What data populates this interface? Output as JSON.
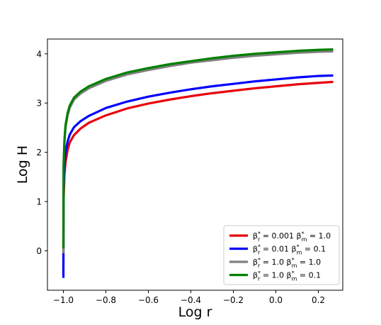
{
  "chart_data": {
    "type": "line",
    "title": "",
    "xlabel": "Log r",
    "ylabel": "Log H",
    "xlim": [
      -1.075,
      0.315
    ],
    "ylim": [
      -0.8,
      4.3
    ],
    "xticks": [
      -1.0,
      -0.8,
      -0.6,
      -0.4,
      -0.2,
      0.0,
      0.2
    ],
    "xtick_labels": [
      "−1.0",
      "−0.8",
      "−0.6",
      "−0.4",
      "−0.2",
      "0.0",
      "0.2"
    ],
    "yticks": [
      0,
      1,
      2,
      3,
      4
    ],
    "ytick_labels": [
      "0",
      "1",
      "2",
      "3",
      "4"
    ],
    "grid": false,
    "legend_position": "lower-right",
    "x": [
      -1.0,
      -0.999,
      -0.995,
      -0.99,
      -0.98,
      -0.97,
      -0.95,
      -0.92,
      -0.88,
      -0.8,
      -0.7,
      -0.6,
      -0.5,
      -0.4,
      -0.3,
      -0.2,
      -0.1,
      0.0,
      0.1,
      0.2,
      0.27
    ],
    "series": [
      {
        "name": "β*r = 0.001 β*m = 1.0",
        "legend_parts": {
          "a": "β",
          "a_sup": "*",
          "a_sub": "r",
          "a_val": " = 0.001 ",
          "b": "β",
          "b_sup": "*",
          "b_sub": "m",
          "b_val": " = 1.0"
        },
        "color": "#e8000b",
        "y": [
          0.0,
          1.0,
          1.55,
          1.8,
          2.05,
          2.2,
          2.35,
          2.48,
          2.6,
          2.75,
          2.89,
          2.99,
          3.07,
          3.14,
          3.2,
          3.25,
          3.3,
          3.34,
          3.38,
          3.41,
          3.43
        ]
      },
      {
        "name": "β*r = 0.01 β*m = 0.1",
        "legend_parts": {
          "a": "β",
          "a_sup": "*",
          "a_sub": "r",
          "a_val": " = 0.01 ",
          "b": "β",
          "b_sup": "*",
          "b_sub": "m",
          "b_val": " = 0.1"
        },
        "color": "#0000ff",
        "y": [
          -0.55,
          1.2,
          1.75,
          2.0,
          2.22,
          2.36,
          2.51,
          2.63,
          2.74,
          2.9,
          3.03,
          3.13,
          3.21,
          3.28,
          3.34,
          3.39,
          3.44,
          3.48,
          3.52,
          3.55,
          3.56
        ]
      },
      {
        "name": "β*r = 1.0 β*m = 1.0",
        "legend_parts": {
          "a": "β",
          "a_sup": "*",
          "a_sub": "r",
          "a_val": " = 1.0 ",
          "b": "β",
          "b_sup": "*",
          "b_sub": "m",
          "b_val": " = 1.0"
        },
        "color": "#808080",
        "y": [
          -0.05,
          1.7,
          2.2,
          2.5,
          2.75,
          2.9,
          3.07,
          3.19,
          3.3,
          3.45,
          3.58,
          3.67,
          3.75,
          3.82,
          3.87,
          3.92,
          3.96,
          3.99,
          4.02,
          4.04,
          4.05
        ]
      },
      {
        "name": "β*r = 1.0 β*m = 0.1",
        "legend_parts": {
          "a": "β",
          "a_sup": "*",
          "a_sub": "r",
          "a_val": " = 1.0 ",
          "b": "β",
          "b_sup": "*",
          "b_sub": "m",
          "b_val": " = 0.1"
        },
        "color": "#008000",
        "y": [
          0.05,
          1.75,
          2.25,
          2.55,
          2.8,
          2.95,
          3.11,
          3.23,
          3.34,
          3.49,
          3.62,
          3.71,
          3.79,
          3.85,
          3.91,
          3.96,
          4.0,
          4.03,
          4.06,
          4.08,
          4.09
        ]
      }
    ]
  }
}
